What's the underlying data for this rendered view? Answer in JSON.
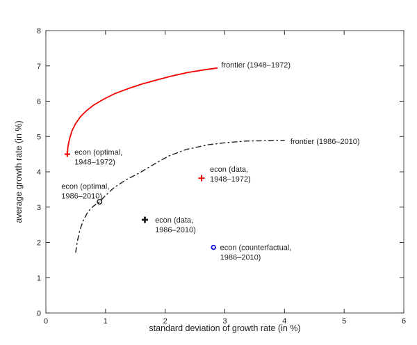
{
  "colors": {
    "axis": "#4a4a4a",
    "tick": "#2b2b2b",
    "text": "#1f1f1f",
    "red": "#f40000",
    "black_series": "#1c1c1c",
    "blue": "#1414e0"
  },
  "chart_data": {
    "type": "line",
    "title": "",
    "xlabel": "standard deviation of growth rate (in %)",
    "ylabel": "average growth rate (in %)",
    "xlim": [
      0,
      6
    ],
    "ylim": [
      0,
      8
    ],
    "xticks": [
      0,
      1,
      2,
      3,
      4,
      5,
      6
    ],
    "yticks": [
      0,
      1,
      2,
      3,
      4,
      5,
      6,
      7,
      8
    ],
    "grid": false,
    "legend_position": "inline-annotations",
    "series": [
      {
        "name": "frontier (1948-1972)",
        "style": "solid",
        "color": "#f40000",
        "width": 1.8,
        "points": [
          [
            0.36,
            4.5
          ],
          [
            0.37,
            4.72
          ],
          [
            0.4,
            4.95
          ],
          [
            0.44,
            5.17
          ],
          [
            0.5,
            5.37
          ],
          [
            0.58,
            5.56
          ],
          [
            0.68,
            5.73
          ],
          [
            0.8,
            5.89
          ],
          [
            0.97,
            6.06
          ],
          [
            1.15,
            6.21
          ],
          [
            1.37,
            6.35
          ],
          [
            1.6,
            6.48
          ],
          [
            1.85,
            6.6
          ],
          [
            2.1,
            6.71
          ],
          [
            2.37,
            6.81
          ],
          [
            2.62,
            6.88
          ],
          [
            2.87,
            6.94
          ]
        ]
      },
      {
        "name": "frontier (1986-2010)",
        "style": "dash-dot",
        "color": "#1c1c1c",
        "width": 1.4,
        "points": [
          [
            0.5,
            1.72
          ],
          [
            0.53,
            2.05
          ],
          [
            0.57,
            2.35
          ],
          [
            0.63,
            2.63
          ],
          [
            0.71,
            2.88
          ],
          [
            0.8,
            3.03
          ],
          [
            0.9,
            3.15
          ],
          [
            1.0,
            3.33
          ],
          [
            1.15,
            3.56
          ],
          [
            1.35,
            3.78
          ],
          [
            1.56,
            3.96
          ],
          [
            1.8,
            4.2
          ],
          [
            2.06,
            4.45
          ],
          [
            2.35,
            4.63
          ],
          [
            2.73,
            4.77
          ],
          [
            3.05,
            4.83
          ],
          [
            3.35,
            4.87
          ],
          [
            3.7,
            4.88
          ],
          [
            4.0,
            4.89
          ]
        ]
      }
    ],
    "markers": [
      {
        "name": "econ-optimal-1948-1972",
        "shape": "plus",
        "x": 0.36,
        "y": 4.5,
        "color": "#f40000",
        "size": 8,
        "weight": 2.2
      },
      {
        "name": "econ-optimal-1986-2010",
        "shape": "circle-open",
        "x": 0.9,
        "y": 3.15,
        "color": "#1c1c1c",
        "size": 8,
        "weight": 1.5
      },
      {
        "name": "econ-data-1948-1972",
        "shape": "plus",
        "x": 2.61,
        "y": 3.82,
        "color": "#f40000",
        "size": 9,
        "weight": 1.9
      },
      {
        "name": "econ-data-1986-2010",
        "shape": "plus",
        "x": 1.66,
        "y": 2.64,
        "color": "#1c1c1c",
        "size": 9,
        "weight": 2.8
      },
      {
        "name": "econ-counterfactual-1986-2010",
        "shape": "circle-open",
        "x": 2.81,
        "y": 1.86,
        "color": "#1414e0",
        "size": 7.5,
        "weight": 1.9
      }
    ],
    "annotations": [
      {
        "name": "label-frontier-1948-1972",
        "lines": [
          "frontier (1948–1972)"
        ],
        "x": 2.94,
        "y": 7.03
      },
      {
        "name": "label-frontier-1986-2010",
        "lines": [
          "frontier (1986–2010)"
        ],
        "x": 4.1,
        "y": 4.87
      },
      {
        "name": "label-econ-optimal-1948-1972",
        "lines": [
          "econ (optimal,",
          "1948–1972)"
        ],
        "x": 0.48,
        "y": 4.56
      },
      {
        "name": "label-econ-optimal-1986-2010",
        "lines": [
          "econ (optimal,",
          "1986–2010)"
        ],
        "x": 0.26,
        "y": 3.6
      },
      {
        "name": "label-econ-data-1948-1972",
        "lines": [
          "econ (data,",
          "1948–1972)"
        ],
        "x": 2.75,
        "y": 4.08
      },
      {
        "name": "label-econ-data-1986-2010",
        "lines": [
          "econ (data,",
          "1986–2010)"
        ],
        "x": 1.83,
        "y": 2.64
      },
      {
        "name": "label-econ-counterfactual-1986-2010",
        "lines": [
          "econ (counterfactual,",
          "1986–2010)"
        ],
        "x": 2.92,
        "y": 1.86
      }
    ]
  }
}
